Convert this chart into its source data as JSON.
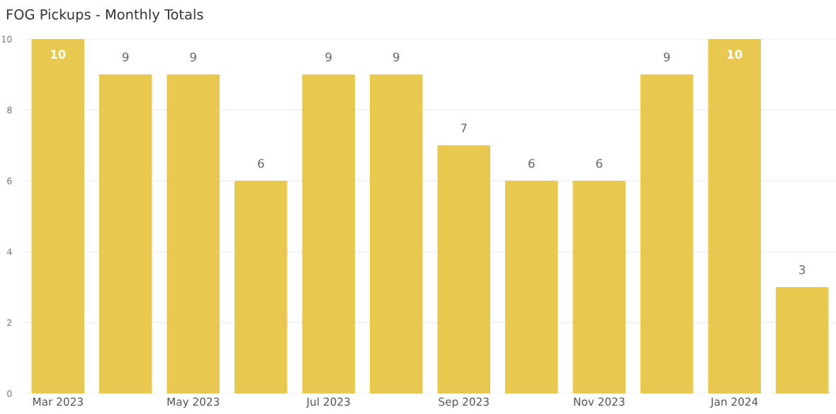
{
  "chart_data": {
    "type": "bar",
    "title": "FOG Pickups - Monthly Totals",
    "categories": [
      "Mar 2023",
      null,
      "May 2023",
      null,
      "Jul 2023",
      null,
      "Sep 2023",
      null,
      "Nov 2023",
      null,
      "Jan 2024",
      null
    ],
    "values": [
      10,
      9,
      9,
      6,
      9,
      9,
      7,
      6,
      6,
      9,
      10,
      3
    ],
    "color": "#e8c84e",
    "ylim": [
      0,
      10
    ],
    "yticks": [
      0,
      2,
      4,
      6,
      8,
      10
    ],
    "grid": "y",
    "data_labels": true
  }
}
